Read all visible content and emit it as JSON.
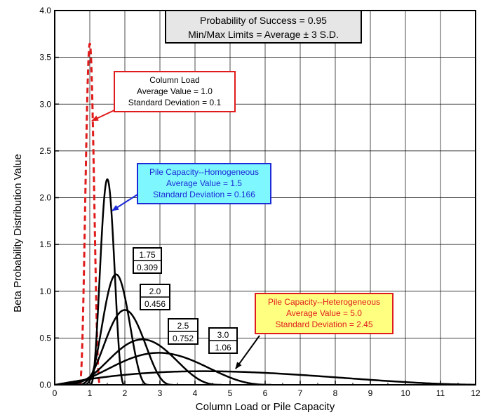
{
  "chart_data": {
    "type": "line",
    "title": "",
    "xlabel": "Column Load or Pile Capacity",
    "ylabel": "Beta Probability Distribution Value",
    "xlim": [
      0,
      12
    ],
    "ylim": [
      0,
      4.0
    ],
    "x_ticks": [
      "0",
      "1",
      "2",
      "3",
      "4",
      "5",
      "6",
      "7",
      "8",
      "9",
      "10",
      "11",
      "12"
    ],
    "y_ticks": [
      "0.0",
      "0.5",
      "1.0",
      "1.5",
      "2.0",
      "2.5",
      "3.0",
      "3.5",
      "4.0"
    ],
    "grid": true,
    "header_box": {
      "line1": "Probability of Success = 0.95",
      "line2": "Min/Max Limits = Average ± 3 S.D."
    },
    "series": [
      {
        "style": "dashed",
        "color": "#e01b1b",
        "mean": 1.0,
        "sd": 0.1
      },
      {
        "style": "solid",
        "color": "#000000",
        "mean": 1.5,
        "sd": 0.166
      },
      {
        "style": "solid",
        "color": "#000000",
        "mean": 1.75,
        "sd": 0.309
      },
      {
        "style": "solid",
        "color": "#000000",
        "mean": 2.0,
        "sd": 0.456
      },
      {
        "style": "solid",
        "color": "#000000",
        "mean": 2.5,
        "sd": 0.752
      },
      {
        "style": "solid",
        "color": "#000000",
        "mean": 3.0,
        "sd": 1.06
      },
      {
        "style": "solid",
        "color": "#000000",
        "mean": 5.0,
        "sd": 2.45
      }
    ],
    "annotations": [
      {
        "id": "column-load",
        "lines": [
          "Column Load",
          "Average Value = 1.0",
          "Standard Deviation = 0.1"
        ],
        "border": "#e01b1b",
        "fill": "#ffffff",
        "text_color": "#000000",
        "arrow_color": "#e01b1b"
      },
      {
        "id": "pile-homogeneous",
        "lines": [
          "Pile Capacity--Homogeneous",
          "Average Value = 1.5",
          "Standard Deviation = 0.166"
        ],
        "border": "#1c2bd6",
        "fill": "#7ef7ff",
        "text_color": "#1c2bd6",
        "arrow_color": "#1c2bd6"
      },
      {
        "id": "pile-heterogeneous",
        "lines": [
          "Pile Capacity--Heterogeneous",
          "Average Value = 5.0",
          "Standard Deviation = 2.45"
        ],
        "border": "#e01b1b",
        "fill": "#ffff80",
        "text_color": "#e01b1b",
        "arrow_color": "#000000"
      }
    ],
    "curve_labels": [
      {
        "top": "1.75",
        "bottom": "0.309"
      },
      {
        "top": "2.0",
        "bottom": "0.456"
      },
      {
        "top": "2.5",
        "bottom": "0.752"
      },
      {
        "top": "3.0",
        "bottom": "1.06"
      }
    ]
  }
}
